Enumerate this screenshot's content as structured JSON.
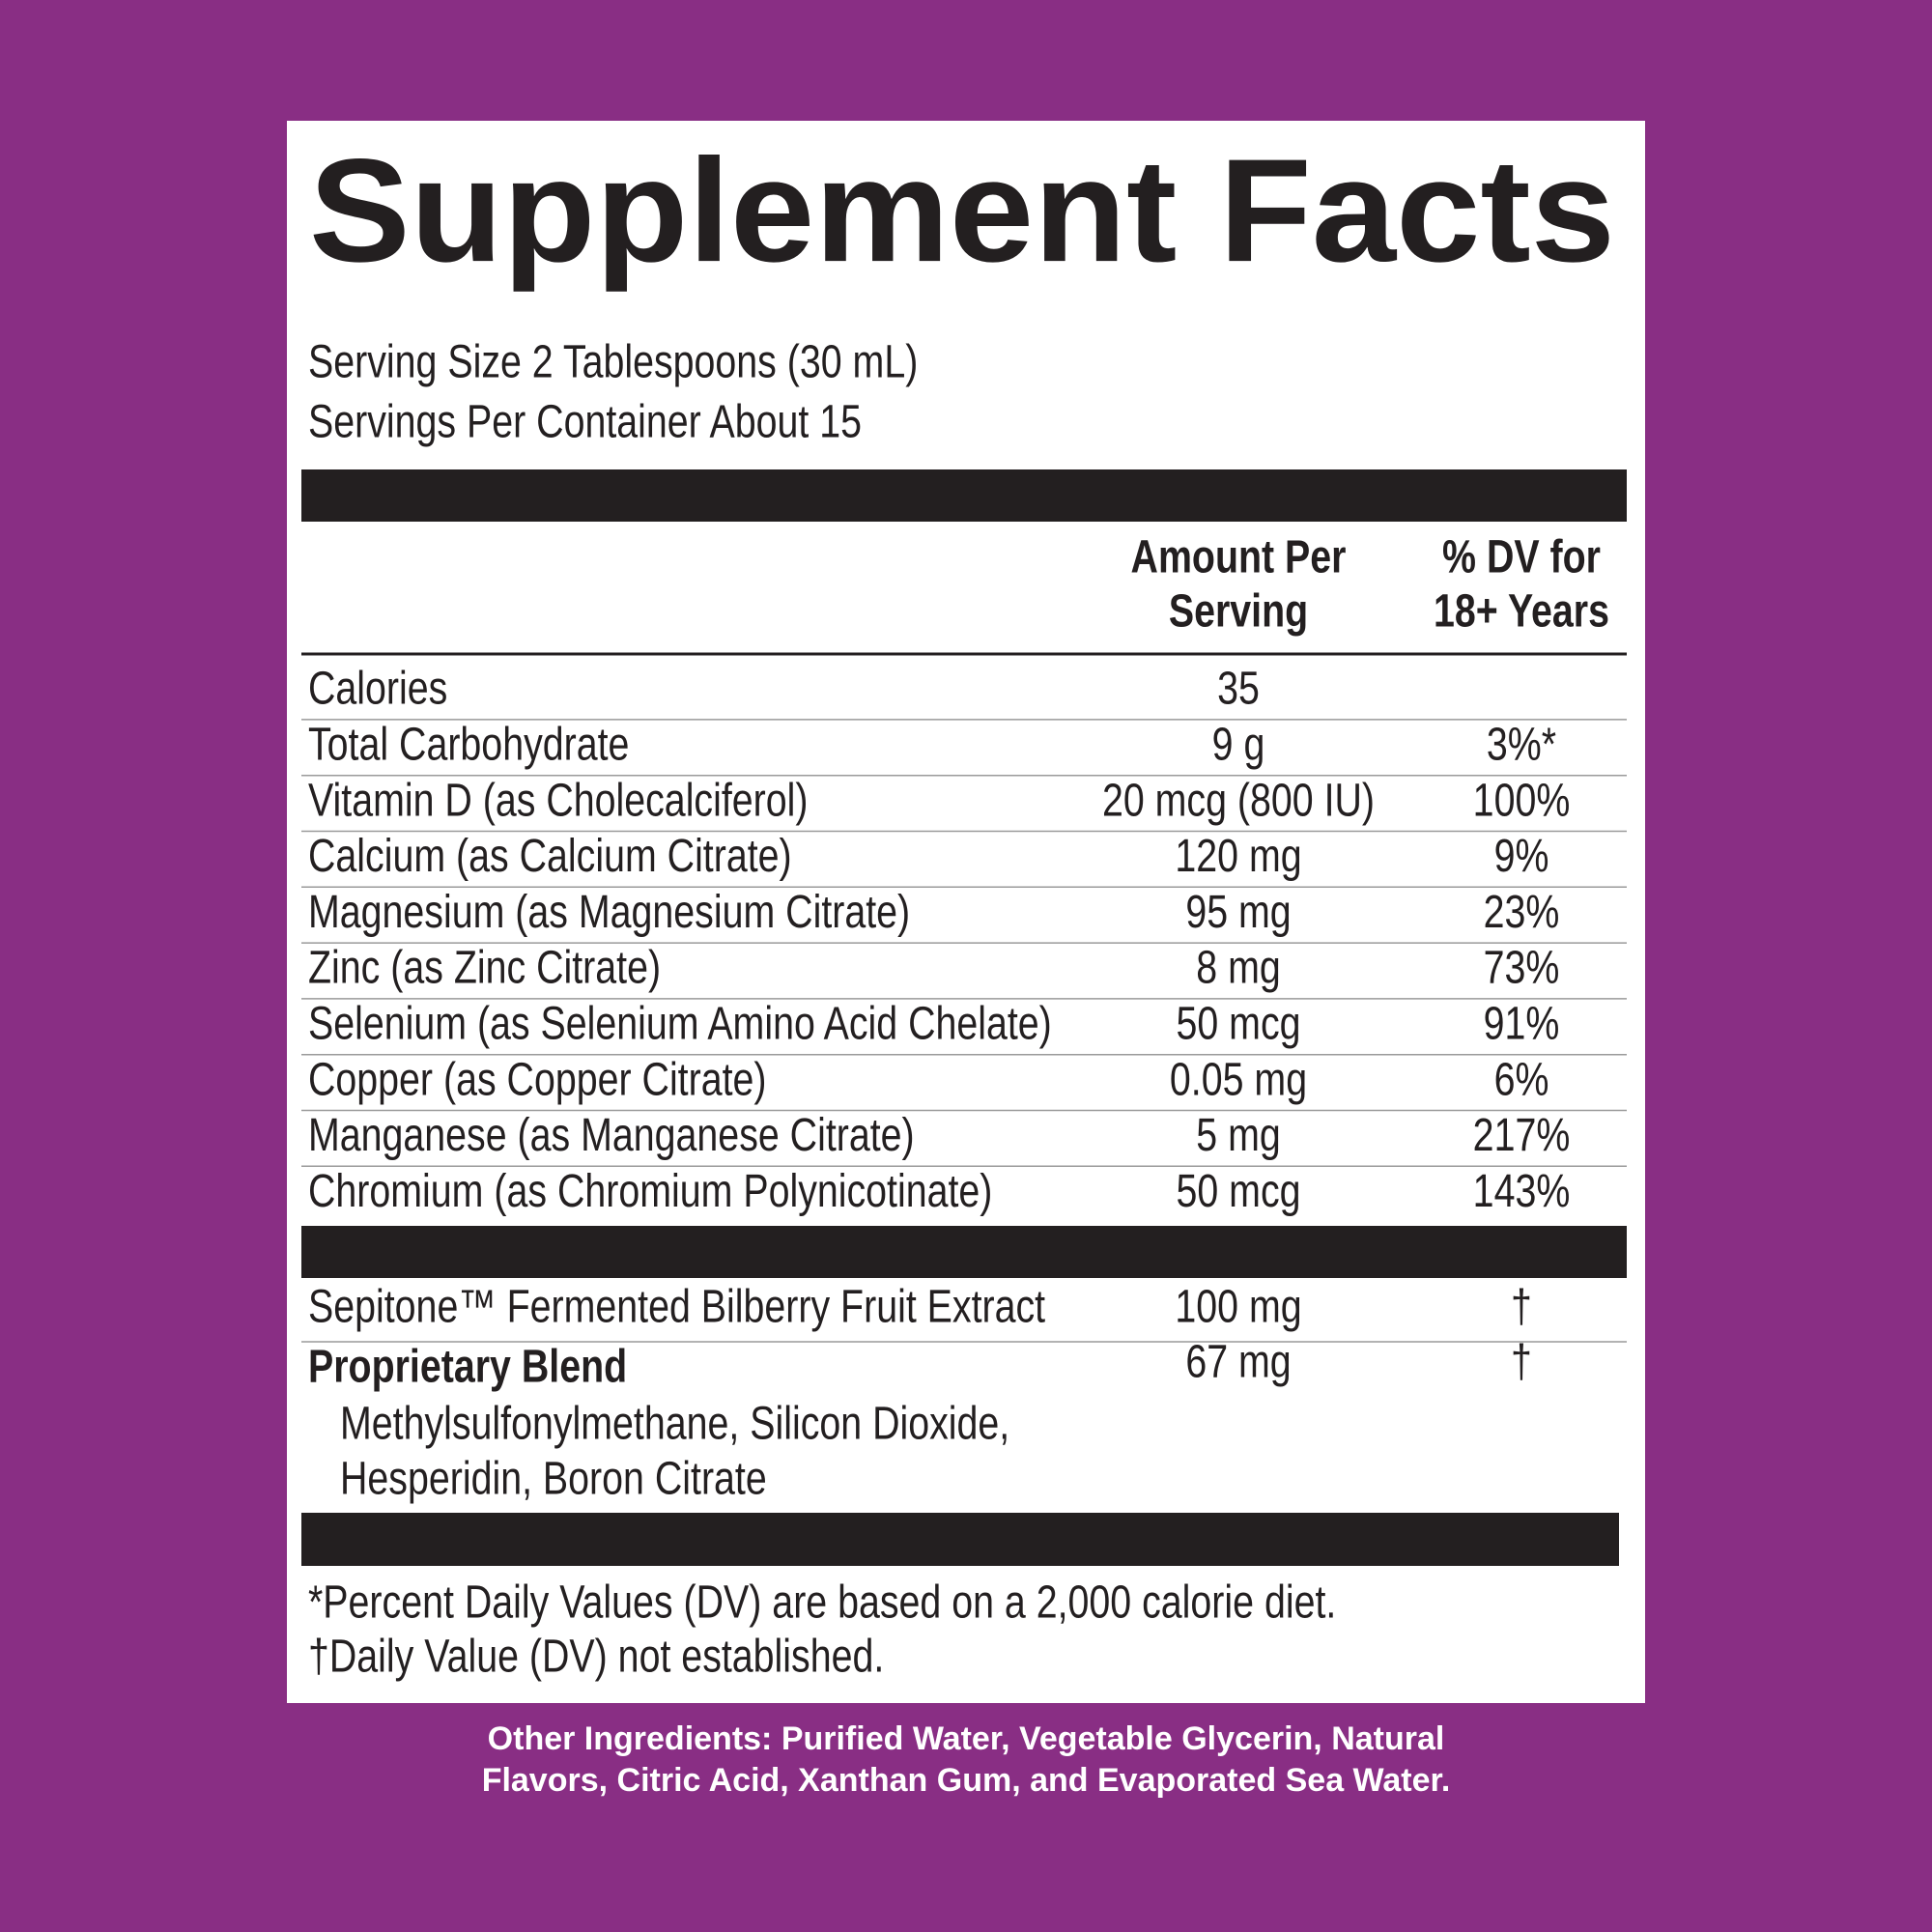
{
  "header": {
    "title": "Supplement Facts",
    "serving_size": "Serving Size 2 Tablespoons (30 mL)",
    "servings_per_container": "Servings Per Container About 15"
  },
  "table": {
    "column_headers": [
      [
        "Amount Per",
        "Serving"
      ],
      [
        "% DV for",
        "18+ Years"
      ]
    ],
    "rows": [
      [
        "Calories",
        "35"
      ],
      [
        "Total Carbohydrate",
        "9 g",
        "3%*"
      ],
      [
        "Vitamin D (as Cholecalciferol)",
        "20 mcg (800 IU)",
        "100%"
      ],
      [
        "Calcium (as Calcium Citrate)",
        "120 mg",
        "9%"
      ],
      [
        "Magnesium (as Magnesium Citrate)",
        "95 mg",
        "23%"
      ],
      [
        "Zinc (as Zinc Citrate)",
        "8 mg",
        "73%"
      ],
      [
        "Selenium (as Selenium Amino Acid Chelate)",
        "50 mcg",
        "91%"
      ],
      [
        "Copper (as Copper Citrate)",
        "0.05 mg",
        "6%"
      ],
      [
        "Manganese (as Manganese Citrate)",
        "5 mg",
        "217%"
      ],
      [
        "Chromium (as Chromium Polynicotinate)",
        "50 mcg",
        "143%"
      ]
    ],
    "other_rows": [
      [
        "Sepitone™ Fermented Bilberry Fruit Extract",
        "100 mg",
        "†"
      ]
    ],
    "blend": {
      "name": "Proprietary Blend",
      "amount": "67 mg",
      "dv": "†",
      "ingredients": [
        "Methylsulfonylmethane, Silicon Dioxide,",
        "Hesperidin, Boron Citrate"
      ]
    }
  },
  "footnotes": [
    "*Percent Daily Values (DV) are based on a 2,000 calorie diet.",
    "†Daily Value (DV) not established."
  ],
  "other_ingredients": [
    "Other Ingredients: Purified Water, Vegetable Glycerin, Natural",
    "Flavors, Citric Acid, Xanthan Gum, and Evaporated Sea Water."
  ]
}
